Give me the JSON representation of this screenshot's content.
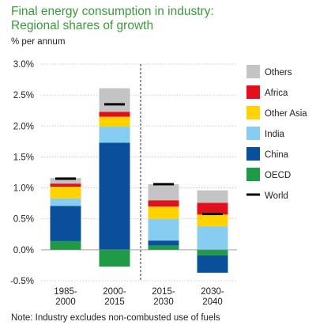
{
  "title_line1": "Final energy consumption in industry:",
  "title_line2": "Regional shares of growth",
  "unit_label": "% per annum",
  "note": "Note: Industry excludes non-combusted use of fuels",
  "chart_data": {
    "type": "bar",
    "stacked": true,
    "categories": [
      [
        "1985-",
        "2000"
      ],
      [
        "2000-",
        "2015"
      ],
      [
        "2015-",
        "2030"
      ],
      [
        "2030-",
        "2040"
      ]
    ],
    "ylim": [
      -0.5,
      3.0
    ],
    "yticks": [
      "-0.5%",
      "0.0%",
      "0.5%",
      "1.0%",
      "1.5%",
      "2.0%",
      "2.5%",
      "3.0%"
    ],
    "ytick_values": [
      -0.5,
      0.0,
      0.5,
      1.0,
      1.5,
      2.0,
      2.5,
      3.0
    ],
    "divider_after_category": 1,
    "series": [
      {
        "name": "OECD",
        "color": "#1f9a46",
        "values": [
          0.14,
          -0.27,
          0.07,
          -0.09
        ]
      },
      {
        "name": "China",
        "color": "#0a4f9a",
        "values": [
          0.57,
          1.73,
          0.08,
          -0.28
        ]
      },
      {
        "name": "India",
        "color": "#87cdf2",
        "values": [
          0.12,
          0.26,
          0.35,
          0.38
        ]
      },
      {
        "name": "Other Asia",
        "color": "#ffd200",
        "values": [
          0.19,
          0.16,
          0.2,
          0.19
        ]
      },
      {
        "name": "Africa",
        "color": "#e2101c",
        "values": [
          0.05,
          0.08,
          0.1,
          0.19
        ]
      },
      {
        "name": "Others",
        "color": "#c4c4c4",
        "values": [
          0.09,
          0.38,
          0.26,
          0.2
        ]
      }
    ],
    "world": {
      "name": "World",
      "color": "#000000",
      "values": [
        1.15,
        2.35,
        1.06,
        0.58
      ]
    },
    "legend_order": [
      "Others",
      "Africa",
      "Other Asia",
      "India",
      "China",
      "OECD",
      "World"
    ],
    "legend_position": "right"
  }
}
